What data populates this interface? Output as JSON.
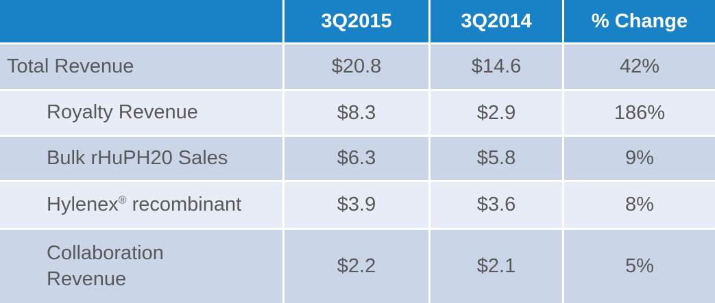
{
  "colors": {
    "header_bg": "#1981C5",
    "header_text": "#FFFFFF",
    "row_dark": "#CBD5E8",
    "row_light": "#E8ECF6",
    "text": "#595959"
  },
  "table": {
    "header": {
      "col0": "",
      "col1": "3Q2015",
      "col2": "3Q2014",
      "col3": "% Change"
    },
    "rows": [
      {
        "label": "Total Revenue",
        "sup": "",
        "rest": "",
        "v1": "$20.8",
        "v2": "$14.6",
        "v3": "42%"
      },
      {
        "label": "Royalty Revenue",
        "sup": "",
        "rest": "",
        "v1": "$8.3",
        "v2": "$2.9",
        "v3": "186%"
      },
      {
        "label": "Bulk rHuPH20 Sales",
        "sup": "",
        "rest": "",
        "v1": "$6.3",
        "v2": "$5.8",
        "v3": "9%"
      },
      {
        "label": "Hylenex",
        "sup": "®",
        "rest": " recombinant",
        "v1": "$3.9",
        "v2": "$3.6",
        "v3": "8%"
      },
      {
        "label": "Collaboration Revenue",
        "sup": "",
        "rest": "",
        "v1": "$2.2",
        "v2": "$2.1",
        "v3": "5%"
      }
    ]
  },
  "chart_data": {
    "type": "table",
    "columns": [
      "",
      "3Q2015",
      "3Q2014",
      "% Change"
    ],
    "rows": [
      [
        "Total Revenue",
        "$20.8",
        "$14.6",
        "42%"
      ],
      [
        "Royalty Revenue",
        "$8.3",
        "$2.9",
        "186%"
      ],
      [
        "Bulk rHuPH20 Sales",
        "$6.3",
        "$5.8",
        "9%"
      ],
      [
        "Hylenex® recombinant",
        "$3.9",
        "$3.6",
        "8%"
      ],
      [
        "Collaboration Revenue",
        "$2.2",
        "$2.1",
        "5%"
      ]
    ]
  }
}
